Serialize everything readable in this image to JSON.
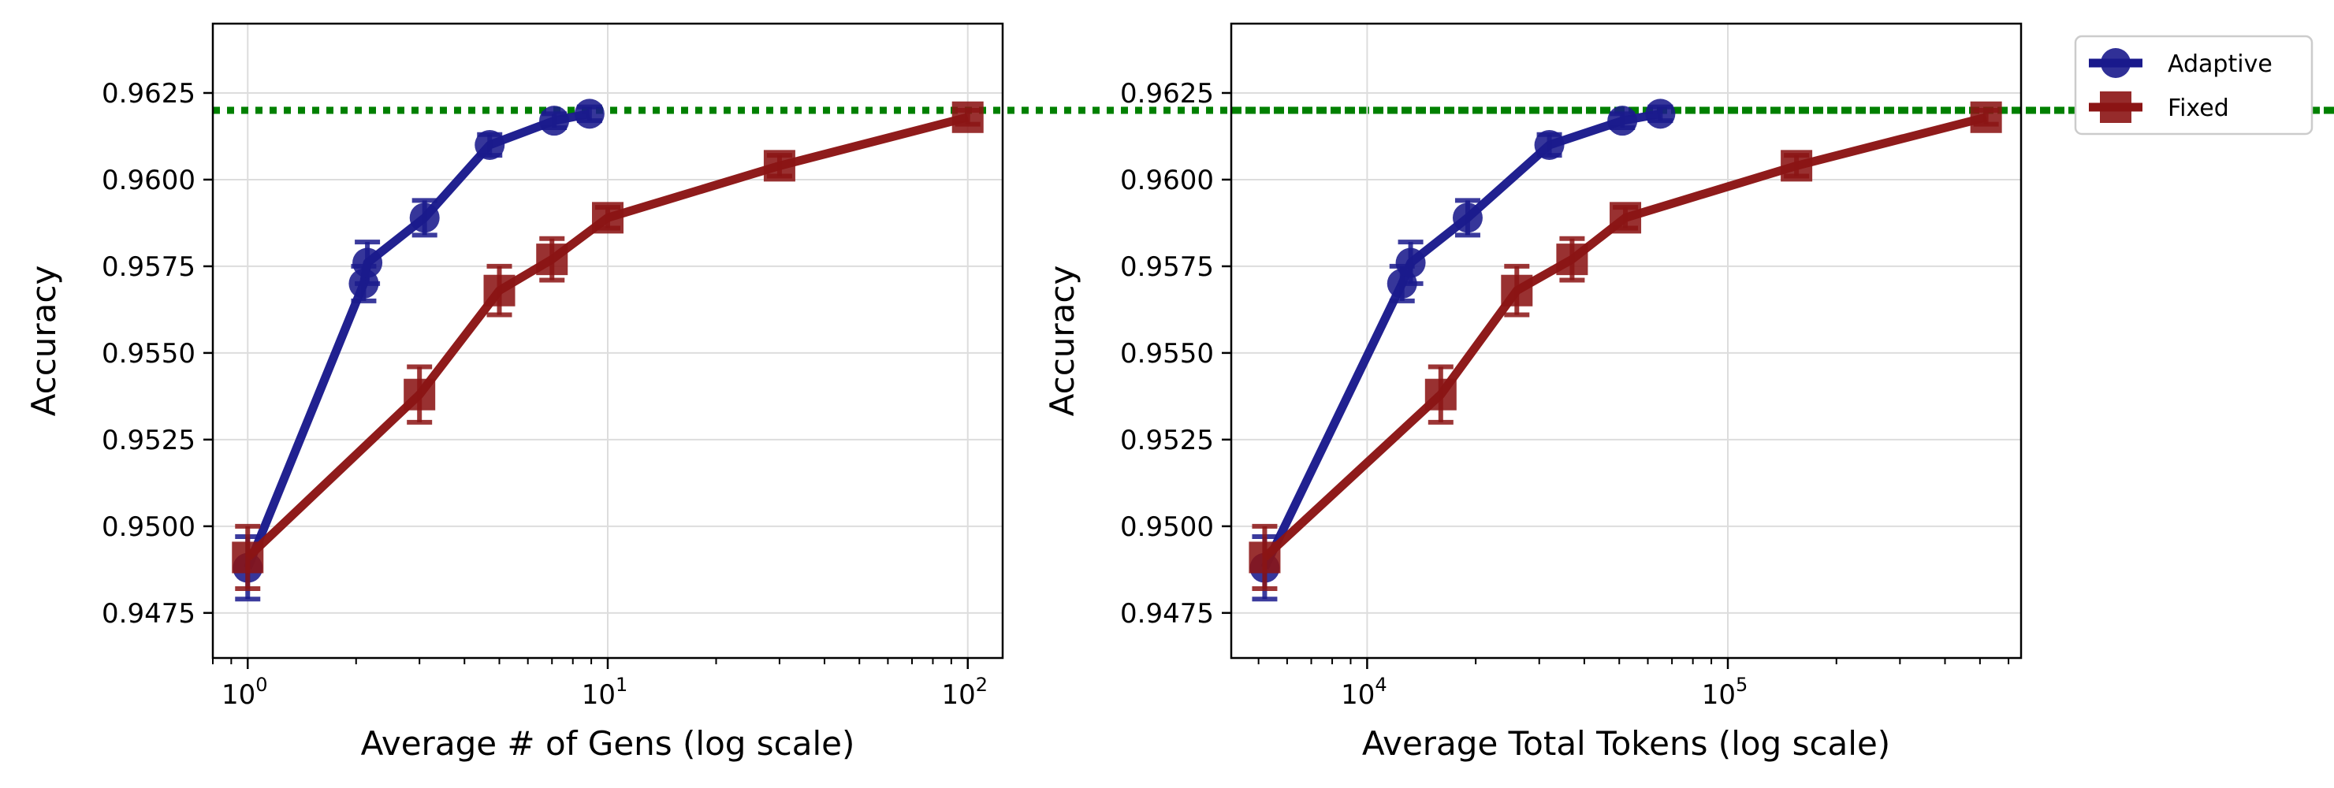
{
  "chart_data": [
    {
      "type": "line",
      "title": "",
      "xlabel": "Average # of Gens (log scale)",
      "ylabel": "Accuracy",
      "xscale": "log",
      "xlim": [
        0.8,
        125
      ],
      "ylim": [
        0.9462,
        0.9645
      ],
      "yticks": [
        0.9475,
        0.95,
        0.9525,
        0.955,
        0.9575,
        0.96,
        0.9625
      ],
      "ytick_labels": [
        "0.9475",
        "0.9500",
        "0.9525",
        "0.9550",
        "0.9575",
        "0.9600",
        "0.9625"
      ],
      "xticks": [
        {
          "value": 1,
          "base": "10",
          "exp": "0"
        },
        {
          "value": 10,
          "base": "10",
          "exp": "1"
        },
        {
          "value": 100,
          "base": "10",
          "exp": "2"
        }
      ],
      "reference_line": {
        "y": 0.962,
        "style": "dotted",
        "color": "#008000"
      },
      "grid": true,
      "series": [
        {
          "name": "Adaptive",
          "color": "#1a1a8c",
          "marker": "circle",
          "x": [
            1.0,
            2.1,
            3.1,
            4.7,
            7.1,
            8.9
          ],
          "y": [
            0.9488,
            0.957,
            0.9589,
            0.961,
            0.9617,
            0.9619
          ],
          "yerr": [
            0.0009,
            0.0005,
            0.0005,
            0.0003,
            0.0002,
            0.0002
          ]
        },
        {
          "name": "Fixed",
          "color": "#8b1414",
          "marker": "square",
          "x": [
            1.0,
            3.0,
            5.0,
            7.0,
            10.0,
            30.0,
            100.0
          ],
          "y": [
            0.9491,
            0.9538,
            0.9568,
            0.9577,
            0.9589,
            0.9604,
            0.9618
          ],
          "yerr": [
            0.0009,
            0.0008,
            0.0007,
            0.0006,
            0.0003,
            0.0003,
            0.0002
          ]
        }
      ],
      "extra_points": [
        {
          "series": "Adaptive",
          "x": 2.15,
          "y": 0.9576,
          "yerr": 0.0006
        }
      ]
    },
    {
      "type": "line",
      "title": "",
      "xlabel": "Average Total Tokens (log scale)",
      "ylabel": "Accuracy",
      "xscale": "log",
      "xlim": [
        4200,
        650000
      ],
      "ylim": [
        0.9462,
        0.9645
      ],
      "yticks": [
        0.9475,
        0.95,
        0.9525,
        0.955,
        0.9575,
        0.96,
        0.9625
      ],
      "ytick_labels": [
        "0.9475",
        "0.9500",
        "0.9525",
        "0.9550",
        "0.9575",
        "0.9600",
        "0.9625"
      ],
      "xticks": [
        {
          "value": 10000,
          "base": "10",
          "exp": "4"
        },
        {
          "value": 100000,
          "base": "10",
          "exp": "5"
        }
      ],
      "reference_line": {
        "y": 0.962,
        "style": "dotted",
        "color": "#008000"
      },
      "grid": true,
      "series": [
        {
          "name": "Adaptive",
          "color": "#1a1a8c",
          "marker": "circle",
          "x": [
            5200,
            12500,
            19000,
            32000,
            51000,
            65000
          ],
          "y": [
            0.9488,
            0.957,
            0.9589,
            0.961,
            0.9617,
            0.9619
          ],
          "yerr": [
            0.0009,
            0.0005,
            0.0005,
            0.0003,
            0.0002,
            0.0002
          ]
        },
        {
          "name": "Fixed",
          "color": "#8b1414",
          "marker": "square",
          "x": [
            5200,
            16000,
            26000,
            37000,
            52000,
            155000,
            520000
          ],
          "y": [
            0.9491,
            0.9538,
            0.9568,
            0.9577,
            0.9589,
            0.9604,
            0.9618
          ],
          "yerr": [
            0.0009,
            0.0008,
            0.0007,
            0.0006,
            0.0003,
            0.0003,
            0.0002
          ]
        }
      ],
      "extra_points": [
        {
          "series": "Adaptive",
          "x": 13200,
          "y": 0.9576,
          "yerr": 0.0006
        }
      ]
    }
  ],
  "legend": {
    "placement": "upper-right-outside",
    "entries": [
      {
        "label": "Adaptive",
        "color": "#1a1a8c",
        "marker": "circle"
      },
      {
        "label": "Fixed",
        "color": "#8b1414",
        "marker": "square"
      }
    ]
  }
}
